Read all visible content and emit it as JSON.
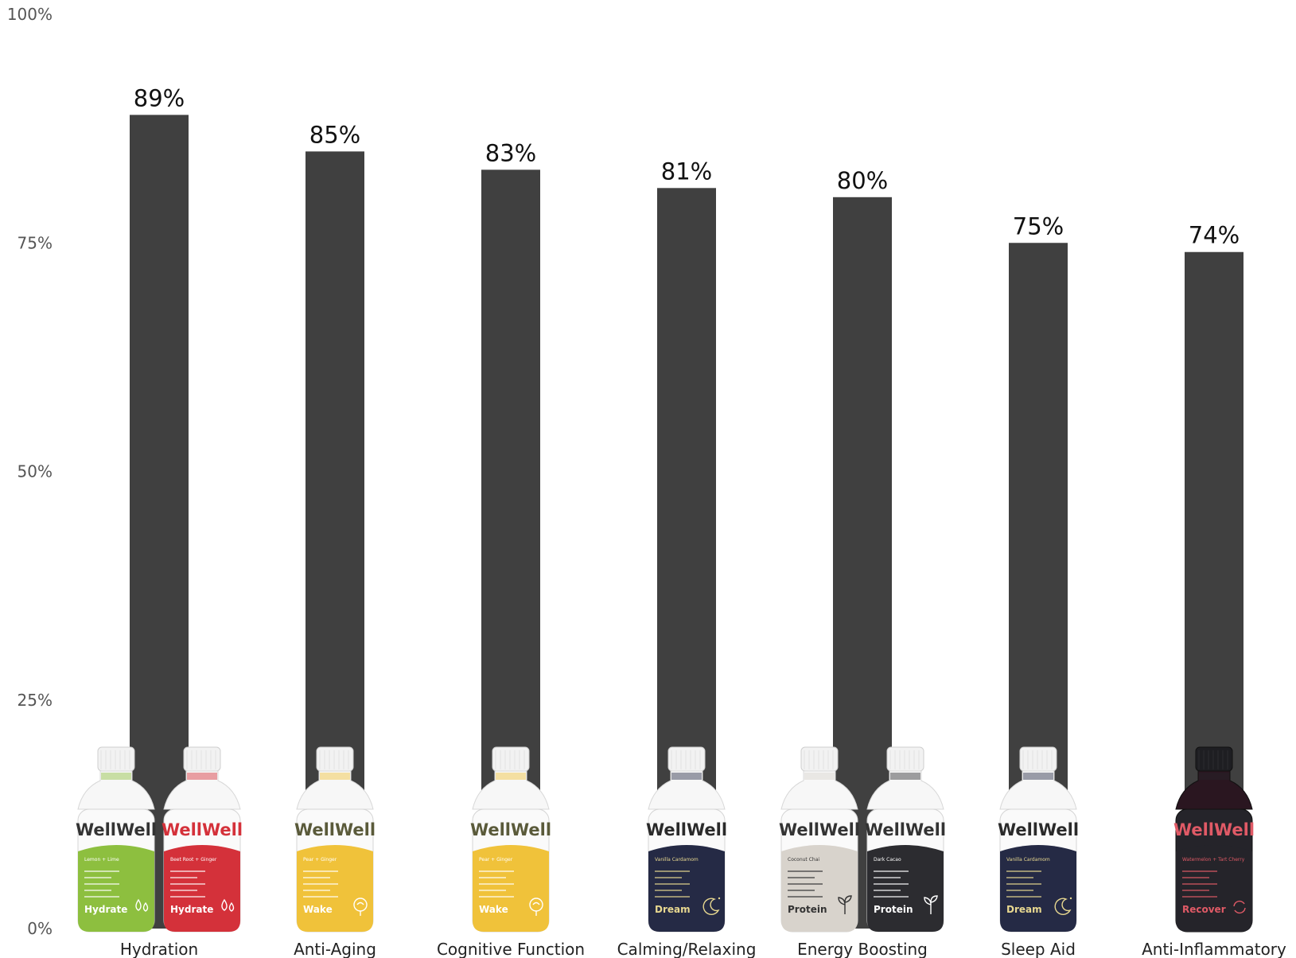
{
  "chart_data": {
    "type": "bar",
    "categories": [
      "Hydration",
      "Anti-Aging",
      "Cognitive Function",
      "Calming/Relaxing",
      "Energy Boosting",
      "Sleep Aid",
      "Anti-Inflammatory"
    ],
    "values": [
      89,
      85,
      83,
      81,
      80,
      75,
      74
    ],
    "value_labels": [
      "89%",
      "85%",
      "83%",
      "81%",
      "80%",
      "75%",
      "74%"
    ],
    "yticks": [
      0,
      25,
      50,
      75,
      100
    ],
    "ytick_labels": [
      "0%",
      "25%",
      "50%",
      "75%",
      "100%"
    ],
    "ylim": [
      0,
      100
    ],
    "grid": false,
    "bar_color": "#404040",
    "title": "",
    "xlabel": "",
    "ylabel": ""
  },
  "product_images": [
    {
      "category": 0,
      "bottles": [
        {
          "brand": "WellWell",
          "name": "Hydrate",
          "flavor": "Lemon + Lime",
          "label_color": "#8dbf3f",
          "text_color": "#ffffff",
          "brand_color": "#333333",
          "icon": "water-drops-icon"
        },
        {
          "brand": "WellWell",
          "name": "Hydrate",
          "flavor": "Beet Root + Ginger",
          "label_color": "#d4313a",
          "text_color": "#ffffff",
          "brand_color": "#d4313a",
          "icon": "water-drops-icon"
        }
      ]
    },
    {
      "category": 1,
      "bottles": [
        {
          "brand": "WellWell",
          "name": "Wake",
          "flavor": "Pear + Ginger",
          "label_color": "#f0c23a",
          "text_color": "#ffffff",
          "brand_color": "#5a5a3a",
          "icon": "brain-icon"
        }
      ]
    },
    {
      "category": 2,
      "bottles": [
        {
          "brand": "WellWell",
          "name": "Wake",
          "flavor": "Pear + Ginger",
          "label_color": "#f0c23a",
          "text_color": "#ffffff",
          "brand_color": "#5a5a3a",
          "icon": "brain-icon"
        }
      ]
    },
    {
      "category": 3,
      "bottles": [
        {
          "brand": "WellWell",
          "name": "Dream",
          "flavor": "Vanilla Cardamom",
          "label_color": "#252a45",
          "text_color": "#e8d890",
          "brand_color": "#2a2a2a",
          "icon": "moon-stars-icon"
        }
      ]
    },
    {
      "category": 4,
      "bottles": [
        {
          "brand": "WellWell",
          "name": "Protein",
          "flavor": "Coconut Chai",
          "label_color": "#d8d3cc",
          "text_color": "#333333",
          "brand_color": "#333333",
          "icon": "sprout-icon"
        },
        {
          "brand": "WellWell",
          "name": "Protein",
          "flavor": "Dark Cacao",
          "label_color": "#2c2c30",
          "text_color": "#ffffff",
          "brand_color": "#333333",
          "icon": "sprout-icon"
        }
      ]
    },
    {
      "category": 5,
      "bottles": [
        {
          "brand": "WellWell",
          "name": "Dream",
          "flavor": "Vanilla Cardamom",
          "label_color": "#252a45",
          "text_color": "#e8d890",
          "brand_color": "#2a2a2a",
          "icon": "moon-stars-icon"
        }
      ]
    },
    {
      "category": 6,
      "bottles": [
        {
          "brand": "WellWell",
          "name": "Recover",
          "flavor": "Watermelon + Tart Cherry",
          "label_color": "#25242a",
          "text_color": "#e05a66",
          "brand_color": "#e05a66",
          "icon": "recover-arrows-icon",
          "dark": true
        }
      ]
    }
  ]
}
